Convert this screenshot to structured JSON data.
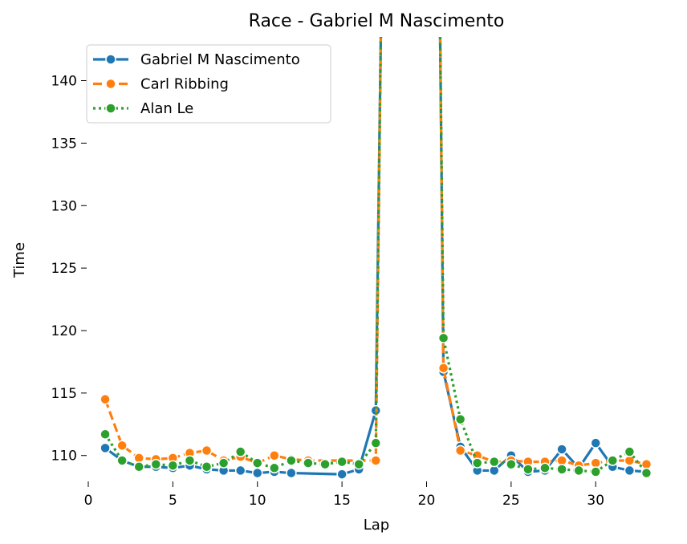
{
  "chart_data": {
    "type": "line",
    "title": "Race - Gabriel M Nascimento",
    "xlabel": "Lap",
    "ylabel": "Time",
    "xlim": [
      0,
      33.5
    ],
    "ylim": [
      107.8,
      143.5
    ],
    "xticks": [
      0,
      5,
      10,
      15,
      20,
      25,
      30
    ],
    "yticks": [
      110,
      115,
      120,
      125,
      130,
      135,
      140
    ],
    "grid": false,
    "legend_position": "top-left",
    "series": [
      {
        "name": "Gabriel M Nascimento",
        "color": "#1f77b4",
        "dash": "solid",
        "points": [
          [
            1,
            110.6
          ],
          [
            2,
            109.6
          ],
          [
            3,
            109.1
          ],
          [
            4,
            109.1
          ],
          [
            5,
            109.0
          ],
          [
            6,
            109.2
          ],
          [
            7,
            108.9
          ],
          [
            8,
            108.8
          ],
          [
            9,
            108.8
          ],
          [
            10,
            108.6
          ],
          [
            11,
            108.7
          ],
          [
            12,
            108.6
          ],
          [
            15,
            108.5
          ],
          [
            16,
            108.9
          ],
          [
            17,
            113.6
          ],
          [
            17.3,
            144
          ],
          [
            20.8,
            144
          ],
          [
            21,
            116.7
          ],
          [
            22,
            110.7
          ],
          [
            23,
            108.8
          ],
          [
            24,
            108.8
          ],
          [
            25,
            110.0
          ],
          [
            26,
            108.7
          ],
          [
            27,
            108.8
          ],
          [
            28,
            110.5
          ],
          [
            29,
            109.0
          ],
          [
            30,
            111.0
          ],
          [
            31,
            109.1
          ],
          [
            32,
            108.8
          ],
          [
            33,
            108.7
          ]
        ]
      },
      {
        "name": "Carl Ribbing",
        "color": "#ff7f0e",
        "dash": "dashed",
        "points": [
          [
            1,
            114.5
          ],
          [
            2,
            110.8
          ],
          [
            3,
            109.8
          ],
          [
            4,
            109.7
          ],
          [
            5,
            109.8
          ],
          [
            6,
            110.2
          ],
          [
            7,
            110.4
          ],
          [
            8,
            109.6
          ],
          [
            9,
            109.9
          ],
          [
            10,
            109.4
          ],
          [
            11,
            110.0
          ],
          [
            12,
            109.7
          ],
          [
            13,
            109.6
          ],
          [
            17,
            109.6
          ],
          [
            17.3,
            144
          ],
          [
            20.8,
            144
          ],
          [
            21,
            117.0
          ],
          [
            22,
            110.4
          ],
          [
            23,
            110.0
          ],
          [
            24,
            109.5
          ],
          [
            25,
            109.6
          ],
          [
            26,
            109.5
          ],
          [
            27,
            109.5
          ],
          [
            28,
            109.6
          ],
          [
            29,
            109.2
          ],
          [
            30,
            109.4
          ],
          [
            31,
            109.6
          ],
          [
            32,
            109.6
          ],
          [
            33,
            109.3
          ]
        ]
      },
      {
        "name": "Alan Le",
        "color": "#2ca02c",
        "dash": "dotted",
        "points": [
          [
            1,
            111.7
          ],
          [
            2,
            109.6
          ],
          [
            3,
            109.1
          ],
          [
            4,
            109.3
          ],
          [
            5,
            109.2
          ],
          [
            6,
            109.6
          ],
          [
            7,
            109.1
          ],
          [
            8,
            109.4
          ],
          [
            9,
            110.3
          ],
          [
            10,
            109.4
          ],
          [
            11,
            109.0
          ],
          [
            12,
            109.6
          ],
          [
            13,
            109.4
          ],
          [
            14,
            109.3
          ],
          [
            15,
            109.5
          ],
          [
            16,
            109.3
          ],
          [
            17,
            111.0
          ],
          [
            17.3,
            144
          ],
          [
            20.8,
            144
          ],
          [
            21,
            119.4
          ],
          [
            22,
            112.9
          ],
          [
            23,
            109.4
          ],
          [
            24,
            109.5
          ],
          [
            25,
            109.3
          ],
          [
            26,
            108.9
          ],
          [
            27,
            109.0
          ],
          [
            28,
            108.9
          ],
          [
            29,
            108.8
          ],
          [
            30,
            108.7
          ],
          [
            31,
            109.6
          ],
          [
            32,
            110.3
          ],
          [
            33,
            108.6
          ]
        ]
      }
    ]
  }
}
